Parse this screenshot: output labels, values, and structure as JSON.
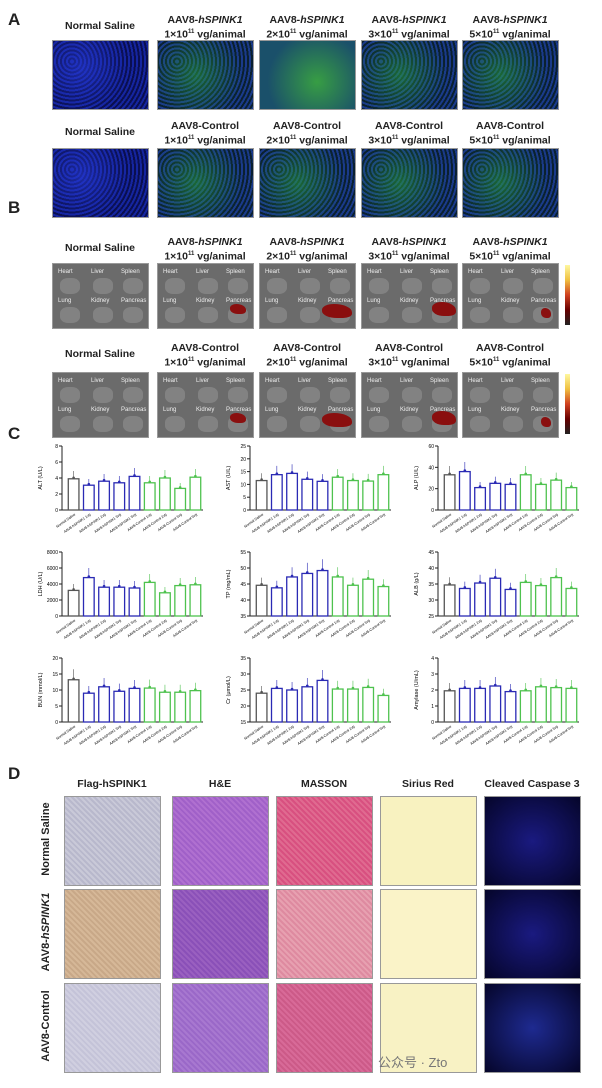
{
  "panels": {
    "A": {
      "label": "A",
      "row1": [
        {
          "l1": "Normal Saline",
          "l2": ""
        },
        {
          "l1": "AAV8-",
          "l1i": "hSPINK1",
          "l2": "1×10",
          "exp": "11",
          "unit": " vg/animal"
        },
        {
          "l1": "AAV8-",
          "l1i": "hSPINK1",
          "l2": "2×10",
          "exp": "11",
          "unit": " vg/animal"
        },
        {
          "l1": "AAV8-",
          "l1i": "hSPINK1",
          "l2": "3×10",
          "exp": "11",
          "unit": " vg/animal"
        },
        {
          "l1": "AAV8-",
          "l1i": "hSPINK1",
          "l2": "5×10",
          "exp": "11",
          "unit": " vg/animal"
        }
      ],
      "row2": [
        {
          "l1": "Normal Saline",
          "l2": ""
        },
        {
          "l1": "AAV8-Control",
          "l2": "1×10",
          "exp": "11",
          "unit": " vg/animal"
        },
        {
          "l1": "AAV8-Control",
          "l2": "2×10",
          "exp": "11",
          "unit": " vg/animal"
        },
        {
          "l1": "AAV8-Control",
          "l2": "3×10",
          "exp": "11",
          "unit": " vg/animal"
        },
        {
          "l1": "AAV8-Control",
          "l2": "5×10",
          "exp": "11",
          "unit": " vg/animal"
        }
      ]
    },
    "B": {
      "label": "B",
      "organs": [
        "Heart",
        "Liver",
        "Spleen",
        "Lung",
        "Kidney",
        "Pancreas"
      ]
    },
    "C": {
      "label": "C"
    },
    "D": {
      "label": "D",
      "columns": [
        "Flag-hSPINK1",
        "H&E",
        "MASSON",
        "Sirius Red",
        "Cleaved Caspase 3"
      ],
      "rows": [
        {
          "t": "Normal Saline",
          "i": ""
        },
        {
          "t": "AAV8-",
          "i": "hSPINK1"
        },
        {
          "t": "AAV8-Control",
          "i": ""
        }
      ]
    }
  },
  "colors": {
    "saline": "#555555",
    "hspink1": "#2a2ab4",
    "control": "#4ec24e"
  },
  "watermark": "公众号 · Zto",
  "chart_data": [
    {
      "type": "bar",
      "ylabel": "ALT (U/L)",
      "ylim": [
        0,
        8
      ],
      "ticks": [
        0,
        2,
        4,
        6,
        8
      ],
      "categories": [
        "Normal Saline",
        "AAV8-hSPINK1 1vg",
        "AAV8-hSPINK1 2vg",
        "AAV8-hSPINK1 3vg",
        "AAV8-hSPINK1 5vg",
        "AAV8-Control 1vg",
        "AAV8-Control 2vg",
        "AAV8-Control 3vg",
        "AAV8-Control 5vg"
      ],
      "values": [
        3.9,
        3.1,
        3.6,
        3.4,
        4.2,
        3.4,
        4.0,
        2.7,
        4.1
      ]
    },
    {
      "type": "bar",
      "ylabel": "AST (U/L)",
      "ylim": [
        0,
        25
      ],
      "ticks": [
        0,
        5,
        10,
        15,
        20,
        25
      ],
      "categories": [
        "Normal Saline",
        "AAV8-hSPINK1 1vg",
        "AAV8-hSPINK1 2vg",
        "AAV8-hSPINK1 3vg",
        "AAV8-hSPINK1 5vg",
        "AAV8-Control 1vg",
        "AAV8-Control 2vg",
        "AAV8-Control 3vg",
        "AAV8-Control 5vg"
      ],
      "values": [
        11.5,
        13.8,
        14.3,
        12,
        11.2,
        12.8,
        11.5,
        11.3,
        13.8
      ]
    },
    {
      "type": "bar",
      "ylabel": "ALP (U/L)",
      "ylim": [
        0,
        60
      ],
      "ticks": [
        0,
        20,
        40,
        60
      ],
      "categories": [
        "Normal Saline",
        "AAV8-hSPINK1 1vg",
        "AAV8-hSPINK1 2vg",
        "AAV8-hSPINK1 3vg",
        "AAV8-hSPINK1 5vg",
        "AAV8-Control 1vg",
        "AAV8-Control 2vg",
        "AAV8-Control 3vg",
        "AAV8-Control 5vg"
      ],
      "values": [
        33,
        36,
        21,
        25,
        24,
        33,
        24,
        28,
        21
      ]
    },
    {
      "type": "bar",
      "ylabel": "LDH (U/L)",
      "ylim": [
        0,
        8000
      ],
      "ticks": [
        0,
        2000,
        4000,
        6000,
        8000
      ],
      "categories": [
        "Normal Saline",
        "AAV8-hSPINK1 1vg",
        "AAV8-hSPINK1 2vg",
        "AAV8-hSPINK1 3vg",
        "AAV8-hSPINK1 5vg",
        "AAV8-Control 1vg",
        "AAV8-Control 2vg",
        "AAV8-Control 3vg",
        "AAV8-Control 5vg"
      ],
      "values": [
        3200,
        4800,
        3600,
        3600,
        3500,
        4200,
        2900,
        3800,
        3900
      ]
    },
    {
      "type": "bar",
      "ylabel": "TP (mg/mL)",
      "ylim": [
        35,
        55
      ],
      "ticks": [
        35,
        40,
        45,
        50,
        55
      ],
      "categories": [
        "Normal Saline",
        "AAV8-hSPINK1 1vg",
        "AAV8-hSPINK1 2vg",
        "AAV8-hSPINK1 3vg",
        "AAV8-hSPINK1 5vg",
        "AAV8-Control 1vg",
        "AAV8-Control 2vg",
        "AAV8-Control 3vg",
        "AAV8-Control 5vg"
      ],
      "values": [
        44.6,
        43.8,
        47.2,
        48.3,
        49.2,
        47.2,
        44.6,
        46.5,
        44.2
      ]
    },
    {
      "type": "bar",
      "ylabel": "ALB (g/L)",
      "ylim": [
        25,
        45
      ],
      "ticks": [
        25,
        30,
        35,
        40,
        45
      ],
      "categories": [
        "Normal Saline",
        "AAV8-hSPINK1 1vg",
        "AAV8-hSPINK1 2vg",
        "AAV8-hSPINK1 3vg",
        "AAV8-hSPINK1 5vg",
        "AAV8-Control 1vg",
        "AAV8-Control 2vg",
        "AAV8-Control 3vg",
        "AAV8-Control 5vg"
      ],
      "values": [
        34.7,
        33.6,
        35.3,
        36.8,
        33.3,
        35.5,
        34.5,
        37,
        33.6
      ]
    },
    {
      "type": "bar",
      "ylabel": "BUN (mmol/L)",
      "ylim": [
        0,
        20
      ],
      "ticks": [
        0,
        5,
        10,
        15,
        20
      ],
      "categories": [
        "Normal Saline",
        "AAV8-hSPINK1 1vg",
        "AAV8-hSPINK1 2vg",
        "AAV8-hSPINK1 3vg",
        "AAV8-hSPINK1 5vg",
        "AAV8-Control 1vg",
        "AAV8-Control 2vg",
        "AAV8-Control 3vg",
        "AAV8-Control 5vg"
      ],
      "values": [
        13.2,
        9,
        11,
        9.6,
        10.5,
        10.6,
        9.3,
        9.3,
        9.8
      ]
    },
    {
      "type": "bar",
      "ylabel": "Cr (μmol/L)",
      "ylim": [
        15,
        35
      ],
      "ticks": [
        15,
        20,
        25,
        30,
        35
      ],
      "categories": [
        "Normal Saline",
        "AAV8-hSPINK1 1vg",
        "AAV8-hSPINK1 2vg",
        "AAV8-hSPINK1 3vg",
        "AAV8-hSPINK1 5vg",
        "AAV8-Control 1vg",
        "AAV8-Control 2vg",
        "AAV8-Control 3vg",
        "AAV8-Control 5vg"
      ],
      "values": [
        24,
        25.5,
        25,
        26,
        28,
        25.3,
        25.3,
        25.8,
        23.3
      ]
    },
    {
      "type": "bar",
      "ylabel": "Amylase (U/mL)",
      "ylim": [
        0,
        4
      ],
      "ticks": [
        0,
        1,
        2,
        3,
        4
      ],
      "categories": [
        "Normal Saline",
        "AAV8-hSPINK1 1vg",
        "AAV8-hSPINK1 2vg",
        "AAV8-hSPINK1 3vg",
        "AAV8-hSPINK1 5vg",
        "AAV8-Control 1vg",
        "AAV8-Control 2vg",
        "AAV8-Control 3vg",
        "AAV8-Control 5vg"
      ],
      "values": [
        1.95,
        2.1,
        2.1,
        2.25,
        1.9,
        1.95,
        2.2,
        2.15,
        2.1
      ]
    }
  ]
}
